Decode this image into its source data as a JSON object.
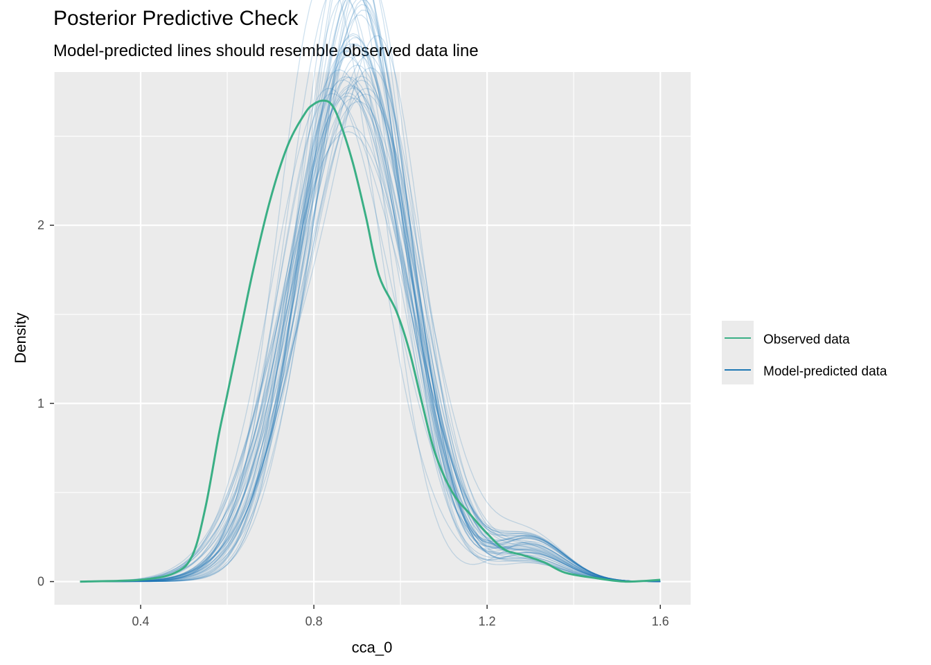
{
  "chart_data": {
    "type": "line",
    "title": "Posterior Predictive Check",
    "subtitle": "Model-predicted lines should resemble observed data line",
    "xlabel": "cca_0",
    "ylabel": "Density",
    "xlim": [
      0.2,
      1.67
    ],
    "ylim": [
      -0.13,
      2.86
    ],
    "x_ticks": [
      0.4,
      0.8,
      1.2,
      1.6
    ],
    "x_tick_labels": [
      "0.4",
      "0.8",
      "1.2",
      "1.6"
    ],
    "y_ticks": [
      0,
      1,
      2
    ],
    "y_tick_labels": [
      "0",
      "1",
      "2"
    ],
    "grid": true,
    "legend_position": "right",
    "series": [
      {
        "name": "Observed data",
        "color": "#3aaf85",
        "x": [
          0.26,
          0.4,
          0.48,
          0.52,
          0.55,
          0.58,
          0.6,
          0.63,
          0.66,
          0.7,
          0.74,
          0.78,
          0.8,
          0.82,
          0.84,
          0.86,
          0.89,
          0.92,
          0.95,
          0.99,
          1.02,
          1.05,
          1.08,
          1.12,
          1.16,
          1.2,
          1.24,
          1.28,
          1.33,
          1.38,
          1.45,
          1.52,
          1.6
        ],
        "y": [
          0.0,
          0.01,
          0.05,
          0.15,
          0.42,
          0.82,
          1.05,
          1.4,
          1.75,
          2.15,
          2.45,
          2.63,
          2.68,
          2.7,
          2.68,
          2.58,
          2.35,
          2.05,
          1.72,
          1.52,
          1.3,
          1.0,
          0.72,
          0.5,
          0.38,
          0.27,
          0.18,
          0.15,
          0.11,
          0.05,
          0.02,
          0.0,
          0.01
        ]
      },
      {
        "name": "Model-predicted data",
        "color": "#1f78b4",
        "draws": 50
      }
    ]
  },
  "legend": {
    "items": [
      {
        "label": "Observed data",
        "color": "#3aaf85"
      },
      {
        "label": "Model-predicted data",
        "color": "#1f78b4"
      }
    ]
  }
}
